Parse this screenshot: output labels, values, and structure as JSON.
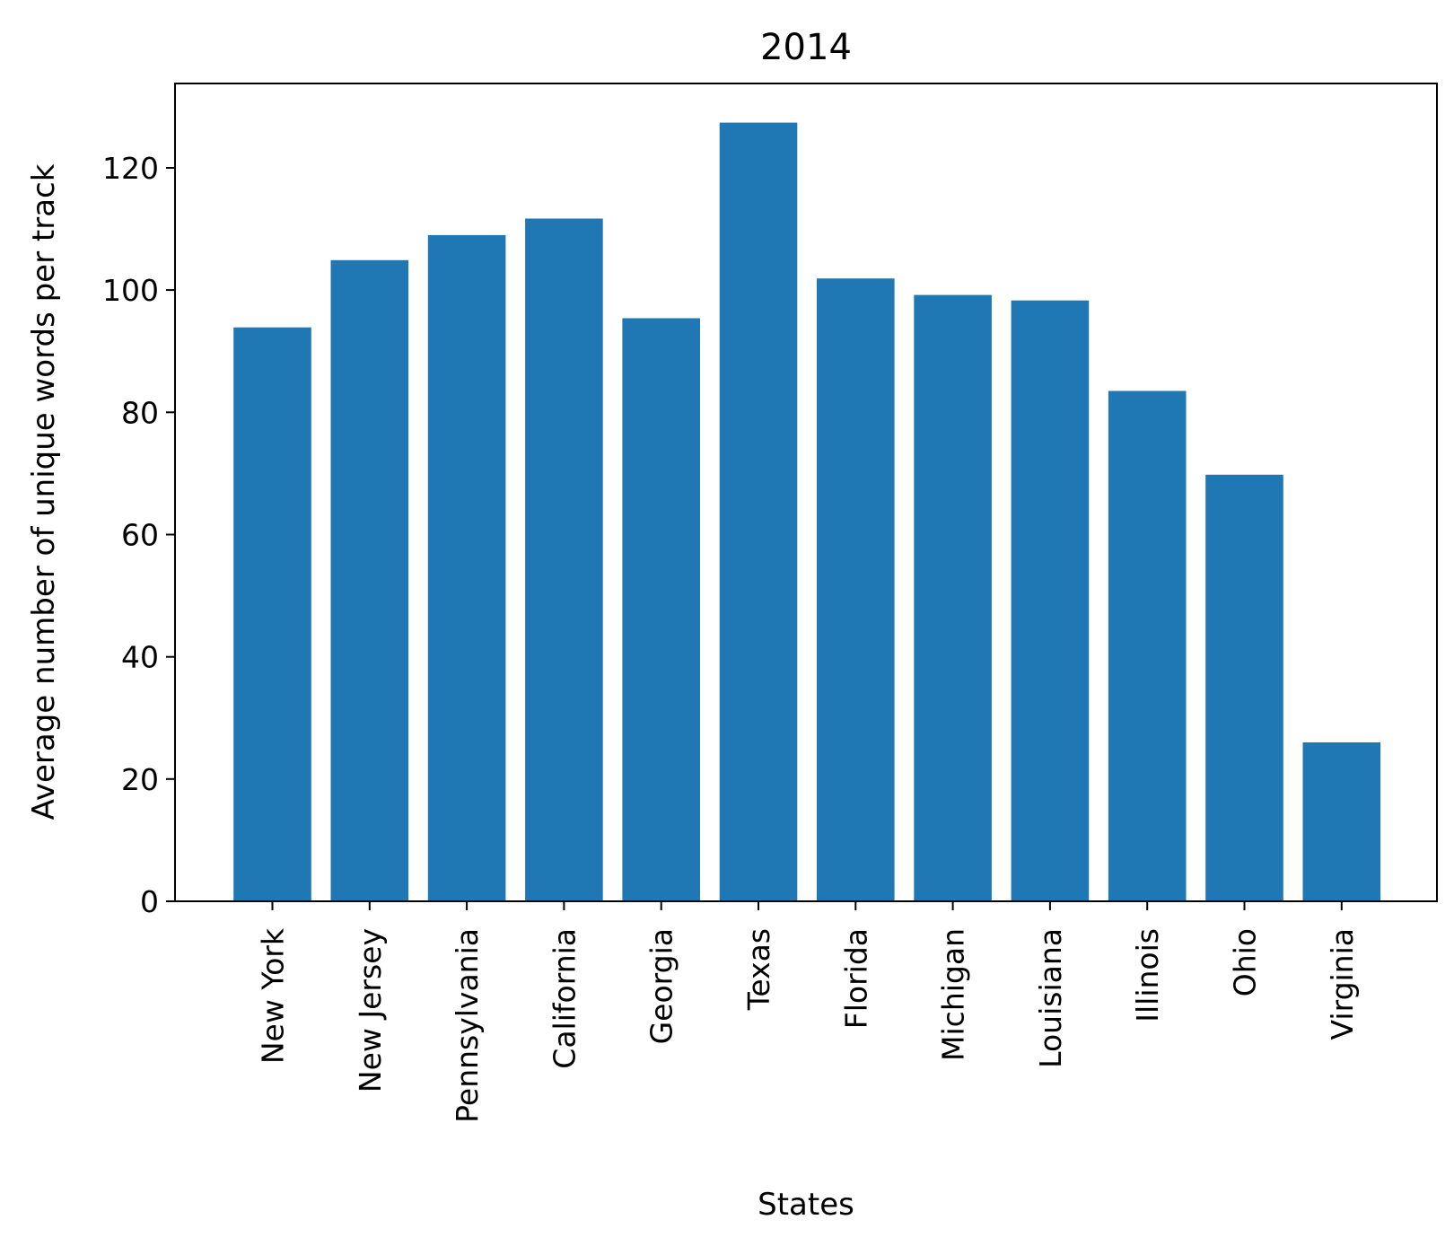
{
  "chart_data": {
    "type": "bar",
    "title": "2014",
    "xlabel": "States",
    "ylabel": "Average number of unique words per track",
    "categories": [
      "New York",
      "New Jersey",
      "Pennsylvania",
      "California",
      "Georgia",
      "Texas",
      "Florida",
      "Michigan",
      "Louisiana",
      "Illinois",
      "Ohio",
      "Virginia"
    ],
    "values": [
      93.9,
      104.9,
      109.0,
      111.7,
      95.4,
      127.4,
      101.9,
      99.2,
      98.3,
      83.5,
      69.8,
      26.0
    ],
    "ylim": [
      0,
      133.8
    ],
    "yticks": [
      0,
      20,
      40,
      60,
      80,
      100,
      120
    ],
    "bar_color": "#1f77b4",
    "grid": false,
    "legend": "none"
  }
}
